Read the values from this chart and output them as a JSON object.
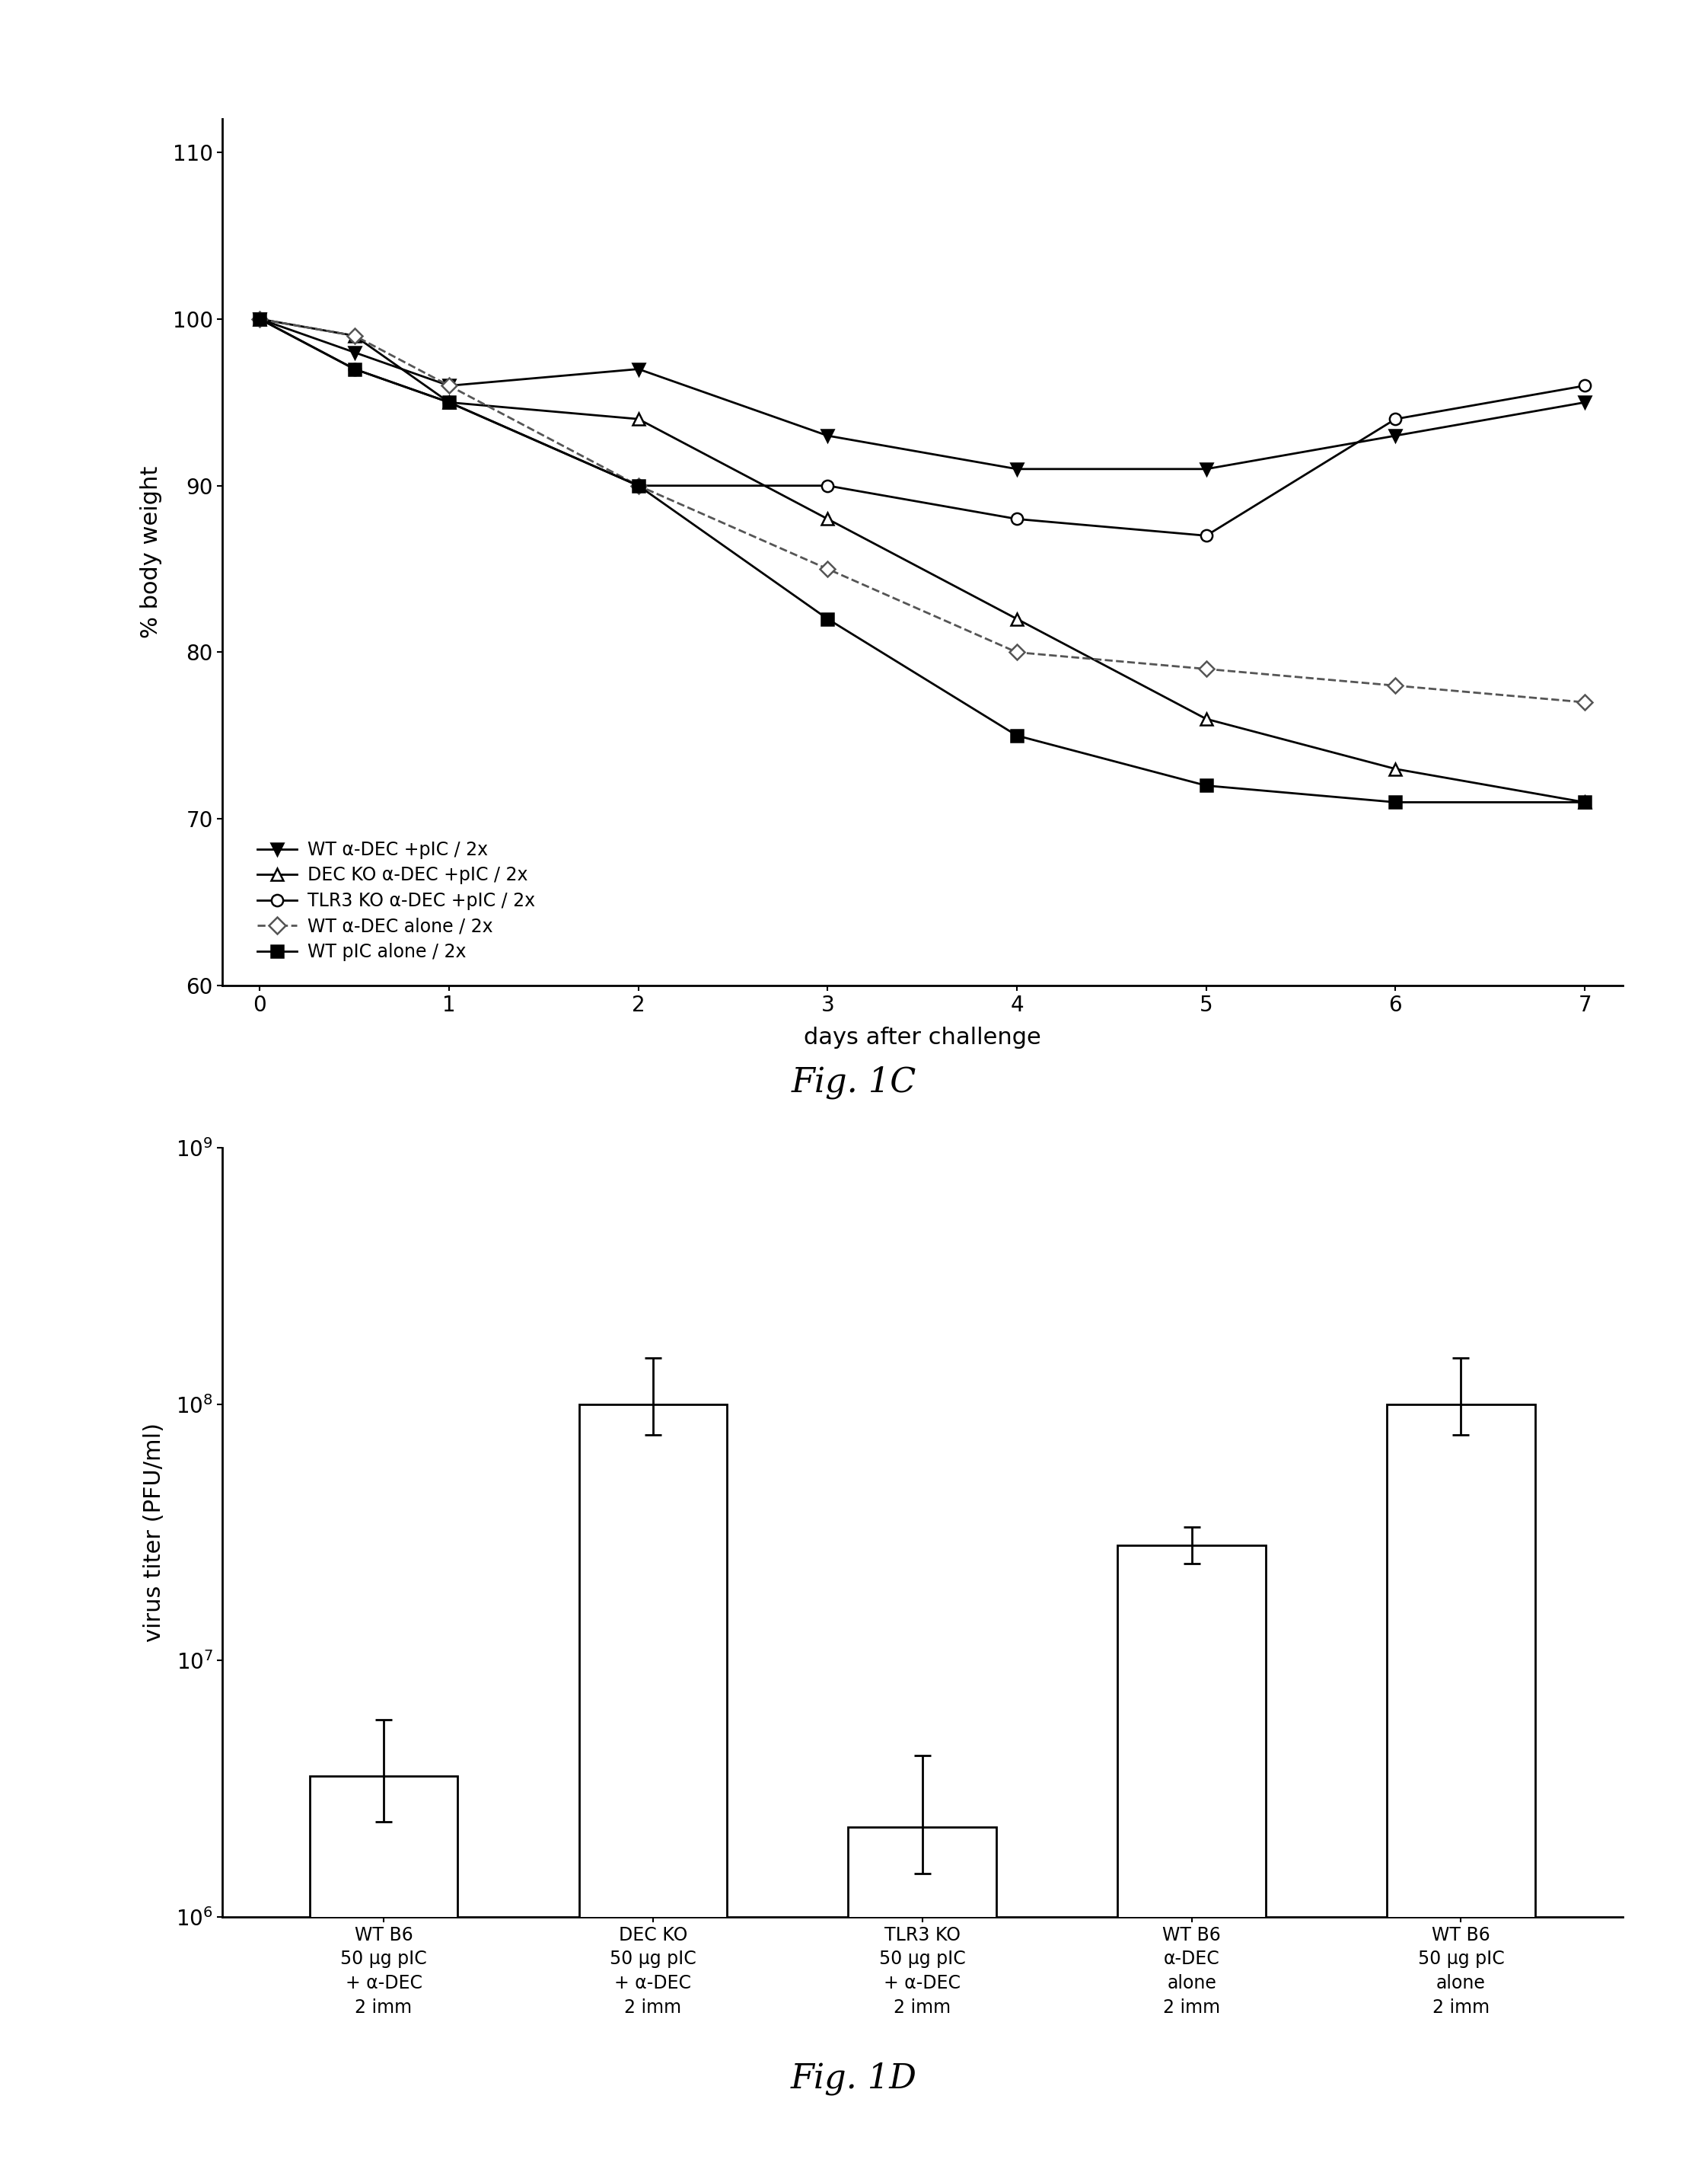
{
  "fig1c": {
    "xlabel": "days after challenge",
    "ylabel": "% body weight",
    "ylim": [
      60,
      112
    ],
    "xlim": [
      -0.2,
      7.2
    ],
    "yticks": [
      60,
      70,
      80,
      90,
      100,
      110
    ],
    "xticks": [
      0,
      1,
      2,
      3,
      4,
      5,
      6,
      7
    ],
    "series": [
      {
        "label": "WT α-DEC +pIC / 2x",
        "x": [
          0,
          0.5,
          1,
          2,
          3,
          4,
          5,
          6,
          7
        ],
        "y": [
          100,
          98,
          96,
          97,
          93,
          91,
          91,
          93,
          95
        ],
        "marker": "v",
        "markersize": 11,
        "linestyle": "-",
        "color": "#000000",
        "fillstyle": "full"
      },
      {
        "label": "DEC KO α-DEC +pIC / 2x",
        "x": [
          0,
          0.5,
          1,
          2,
          3,
          4,
          5,
          6,
          7
        ],
        "y": [
          100,
          99,
          95,
          94,
          88,
          82,
          76,
          73,
          71
        ],
        "marker": "^",
        "markersize": 11,
        "linestyle": "-",
        "color": "#000000",
        "fillstyle": "none"
      },
      {
        "label": "TLR3 KO α-DEC +pIC / 2x",
        "x": [
          0,
          0.5,
          1,
          2,
          3,
          4,
          5,
          6,
          7
        ],
        "y": [
          100,
          97,
          95,
          90,
          90,
          88,
          87,
          94,
          96
        ],
        "marker": "o",
        "markersize": 11,
        "linestyle": "-",
        "color": "#000000",
        "fillstyle": "none"
      },
      {
        "label": "WT α-DEC alone / 2x",
        "x": [
          0,
          0.5,
          1,
          2,
          3,
          4,
          5,
          6,
          7
        ],
        "y": [
          100,
          99,
          96,
          90,
          85,
          80,
          79,
          78,
          77
        ],
        "marker": "D",
        "markersize": 10,
        "linestyle": "--",
        "color": "#555555",
        "fillstyle": "none"
      },
      {
        "label": "WT pIC alone / 2x",
        "x": [
          0,
          0.5,
          1,
          2,
          3,
          4,
          5,
          6,
          7
        ],
        "y": [
          100,
          97,
          95,
          90,
          82,
          75,
          72,
          71,
          71
        ],
        "marker": "s",
        "markersize": 11,
        "linestyle": "-",
        "color": "#000000",
        "fillstyle": "full"
      }
    ]
  },
  "fig1d": {
    "ylabel": "virus titer (PFU/ml)",
    "categories": [
      "WT B6\n50 μg pIC\n+ α-DEC\n2 imm",
      "DEC KO\n50 μg pIC\n+ α-DEC\n2 imm",
      "TLR3 KO\n50 μg pIC\n+ α-DEC\n2 imm",
      "WT B6\nα-DEC\nalone\n2 imm",
      "WT B6\n50 μg pIC\nalone\n2 imm"
    ],
    "values_log": [
      6.55,
      8.0,
      6.35,
      7.45,
      8.0
    ],
    "errors_log_upper": [
      0.22,
      0.18,
      0.28,
      0.07,
      0.18
    ],
    "errors_log_lower": [
      0.18,
      0.12,
      0.18,
      0.07,
      0.12
    ],
    "bar_color": "#ffffff",
    "bar_edgecolor": "#000000"
  }
}
